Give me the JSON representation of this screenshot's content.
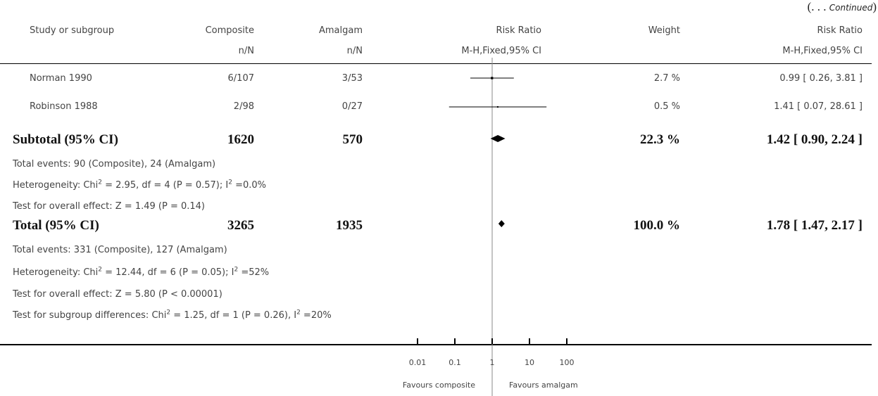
{
  "continued": {
    "open": "(. . . ",
    "word": "Continued",
    "close": ")"
  },
  "headers": {
    "study": "Study or subgroup",
    "composite": "Composite",
    "amalgam": "Amalgam",
    "risk_ratio": "Risk Ratio",
    "weight": "Weight",
    "risk_ratio_right": "Risk Ratio",
    "composite_sub": "n/N",
    "amalgam_sub": "n/N",
    "method": "M-H,Fixed,95% CI",
    "method_right": "M-H,Fixed,95% CI"
  },
  "studies": [
    {
      "name": "Norman 1990",
      "composite": "6/107",
      "amalgam": "3/53",
      "weight": "2.7 %",
      "ci_text": "0.99 [ 0.26, 3.81 ]"
    },
    {
      "name": "Robinson 1988",
      "composite": "2/98",
      "amalgam": "0/27",
      "weight": "0.5 %",
      "ci_text": "1.41 [ 0.07, 28.61 ]"
    }
  ],
  "subtotal": {
    "label": "Subtotal (95% CI)",
    "composite": "1620",
    "amalgam": "570",
    "weight": "22.3 %",
    "ci_text": "1.42 [ 0.90, 2.24 ]"
  },
  "subtotal_notes": {
    "events": "Total events: 90 (Composite), 24 (Amalgam)",
    "het_a": "Heterogeneity: Chi",
    "het_b": " = 2.95, df = 4 (P = 0.57); I",
    "het_c": " =0.0%",
    "overall": "Test for overall effect: Z = 1.49 (P = 0.14)"
  },
  "total": {
    "label": "Total (95% CI)",
    "composite": "3265",
    "amalgam": "1935",
    "weight": "100.0 %",
    "ci_text": "1.78 [ 1.47, 2.17 ]"
  },
  "total_notes": {
    "events": "Total events: 331 (Composite), 127 (Amalgam)",
    "het_a": "Heterogeneity: Chi",
    "het_b": " = 12.44, df = 6 (P = 0.05); I",
    "het_c": " =52%",
    "overall": "Test for overall effect: Z = 5.80 (P < 0.00001)",
    "sub_a": "Test for subgroup differences: Chi",
    "sub_b": " = 1.25, df = 1 (P = 0.26), I",
    "sub_c": " =20%"
  },
  "sup2": "2",
  "axis": {
    "favours_left": "Favours composite",
    "favours_right": "Favours amalgam"
  },
  "chart_data": {
    "type": "forest",
    "scale": "log",
    "xlim": [
      0.01,
      100
    ],
    "ticks": [
      0.01,
      0.1,
      1,
      10,
      100
    ],
    "tick_labels": [
      "0.01",
      "0.1",
      "1",
      "10",
      "100"
    ],
    "null_line": 1,
    "studies": [
      {
        "name": "Norman 1990",
        "rr": 0.99,
        "lo": 0.26,
        "hi": 3.81,
        "weight": 2.7
      },
      {
        "name": "Robinson 1988",
        "rr": 1.41,
        "lo": 0.07,
        "hi": 28.61,
        "weight": 0.5
      }
    ],
    "pooled": [
      {
        "name": "Subtotal (95% CI)",
        "rr": 1.42,
        "lo": 0.9,
        "hi": 2.24
      },
      {
        "name": "Total (95% CI)",
        "rr": 1.78,
        "lo": 1.47,
        "hi": 2.17
      }
    ]
  }
}
